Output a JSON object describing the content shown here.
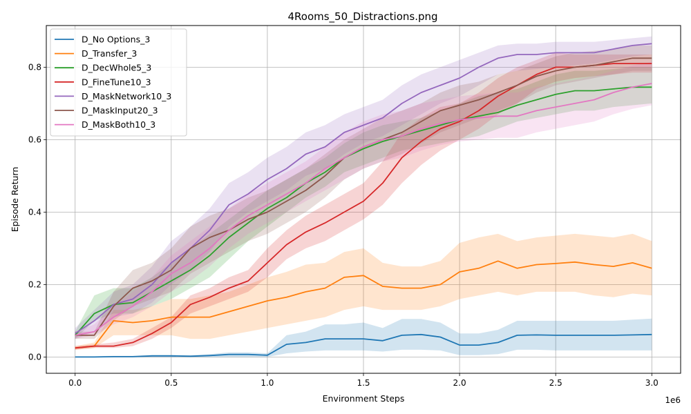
{
  "chart_data": {
    "type": "line",
    "title": "4Rooms_50_Distractions.png",
    "xlabel": "Environment Steps",
    "ylabel": "Episode Return",
    "x_offset_label": "1e6",
    "xlim": [
      -0.15,
      3.15
    ],
    "ylim": [
      -0.045,
      0.915
    ],
    "xticks": [
      0.0,
      0.5,
      1.0,
      1.5,
      2.0,
      2.5,
      3.0
    ],
    "xtick_labels": [
      "0.0",
      "0.5",
      "1.0",
      "1.5",
      "2.0",
      "2.5",
      "3.0"
    ],
    "yticks": [
      0.0,
      0.2,
      0.4,
      0.6,
      0.8
    ],
    "ytick_labels": [
      "0.0",
      "0.2",
      "0.4",
      "0.6",
      "0.8"
    ],
    "grid": true,
    "legend_position": "top-left",
    "x": [
      0,
      0.1,
      0.2,
      0.3,
      0.4,
      0.5,
      0.6,
      0.7,
      0.8,
      0.9,
      1.0,
      1.1,
      1.2,
      1.3,
      1.4,
      1.5,
      1.6,
      1.7,
      1.8,
      1.9,
      2.0,
      2.1,
      2.2,
      2.3,
      2.4,
      2.5,
      2.6,
      2.7,
      2.8,
      2.9,
      3.0
    ],
    "series": [
      {
        "name": "D_No Options_3",
        "color": "#1f77b4",
        "values": [
          0.0,
          0.0,
          0.001,
          0.001,
          0.003,
          0.003,
          0.002,
          0.004,
          0.007,
          0.007,
          0.005,
          0.035,
          0.04,
          0.05,
          0.05,
          0.05,
          0.045,
          0.06,
          0.062,
          0.055,
          0.033,
          0.033,
          0.04,
          0.06,
          0.061,
          0.06,
          0.06,
          0.06,
          0.06,
          0.061,
          0.062
        ],
        "lower": [
          0.0,
          0.0,
          0.0,
          0.0,
          0.0,
          0.0,
          0.0,
          0.0,
          0.0,
          0.0,
          0.0,
          0.01,
          0.015,
          0.018,
          0.018,
          0.018,
          0.015,
          0.02,
          0.02,
          0.018,
          0.005,
          0.005,
          0.008,
          0.02,
          0.02,
          0.018,
          0.018,
          0.018,
          0.018,
          0.018,
          0.018
        ],
        "upper": [
          0.002,
          0.002,
          0.003,
          0.003,
          0.006,
          0.006,
          0.005,
          0.008,
          0.013,
          0.013,
          0.01,
          0.06,
          0.07,
          0.09,
          0.09,
          0.095,
          0.08,
          0.105,
          0.105,
          0.095,
          0.065,
          0.065,
          0.075,
          0.1,
          0.1,
          0.1,
          0.1,
          0.1,
          0.1,
          0.103,
          0.106
        ]
      },
      {
        "name": "D_Transfer_3",
        "color": "#ff7f0e",
        "values": [
          0.025,
          0.03,
          0.1,
          0.095,
          0.1,
          0.11,
          0.11,
          0.11,
          0.125,
          0.14,
          0.155,
          0.165,
          0.18,
          0.19,
          0.22,
          0.225,
          0.195,
          0.19,
          0.19,
          0.2,
          0.235,
          0.245,
          0.265,
          0.245,
          0.255,
          0.258,
          0.262,
          0.255,
          0.25,
          0.26,
          0.245
        ],
        "lower": [
          0.02,
          0.025,
          0.06,
          0.06,
          0.06,
          0.06,
          0.05,
          0.05,
          0.06,
          0.07,
          0.08,
          0.09,
          0.1,
          0.11,
          0.13,
          0.14,
          0.13,
          0.13,
          0.13,
          0.14,
          0.16,
          0.17,
          0.18,
          0.17,
          0.18,
          0.18,
          0.18,
          0.17,
          0.165,
          0.175,
          0.17
        ],
        "upper": [
          0.03,
          0.04,
          0.13,
          0.13,
          0.14,
          0.16,
          0.16,
          0.17,
          0.18,
          0.2,
          0.22,
          0.235,
          0.255,
          0.26,
          0.29,
          0.3,
          0.26,
          0.25,
          0.25,
          0.265,
          0.315,
          0.33,
          0.34,
          0.32,
          0.33,
          0.335,
          0.34,
          0.335,
          0.33,
          0.34,
          0.32
        ]
      },
      {
        "name": "D_DecWhole5_3",
        "color": "#2ca02c",
        "values": [
          0.06,
          0.12,
          0.145,
          0.15,
          0.18,
          0.21,
          0.24,
          0.28,
          0.33,
          0.37,
          0.41,
          0.44,
          0.48,
          0.51,
          0.55,
          0.575,
          0.595,
          0.61,
          0.625,
          0.64,
          0.655,
          0.665,
          0.675,
          0.695,
          0.71,
          0.725,
          0.735,
          0.735,
          0.74,
          0.745,
          0.745
        ],
        "lower": [
          0.05,
          0.1,
          0.12,
          0.12,
          0.14,
          0.16,
          0.19,
          0.22,
          0.27,
          0.32,
          0.36,
          0.4,
          0.44,
          0.47,
          0.51,
          0.53,
          0.55,
          0.57,
          0.58,
          0.59,
          0.6,
          0.61,
          0.63,
          0.65,
          0.66,
          0.67,
          0.68,
          0.68,
          0.69,
          0.695,
          0.7
        ],
        "upper": [
          0.07,
          0.17,
          0.19,
          0.19,
          0.22,
          0.26,
          0.3,
          0.34,
          0.38,
          0.42,
          0.46,
          0.49,
          0.52,
          0.55,
          0.59,
          0.62,
          0.64,
          0.65,
          0.66,
          0.68,
          0.7,
          0.72,
          0.73,
          0.74,
          0.76,
          0.78,
          0.79,
          0.79,
          0.795,
          0.8,
          0.8
        ]
      },
      {
        "name": "D_FineTune10_3",
        "color": "#d62728",
        "values": [
          0.025,
          0.03,
          0.03,
          0.04,
          0.065,
          0.095,
          0.145,
          0.165,
          0.19,
          0.21,
          0.26,
          0.31,
          0.345,
          0.37,
          0.4,
          0.43,
          0.48,
          0.55,
          0.595,
          0.63,
          0.65,
          0.68,
          0.72,
          0.75,
          0.78,
          0.8,
          0.8,
          0.805,
          0.81,
          0.81,
          0.81
        ],
        "lower": [
          0.02,
          0.025,
          0.025,
          0.03,
          0.05,
          0.08,
          0.12,
          0.14,
          0.16,
          0.18,
          0.22,
          0.27,
          0.3,
          0.32,
          0.35,
          0.38,
          0.42,
          0.48,
          0.53,
          0.57,
          0.6,
          0.63,
          0.67,
          0.7,
          0.74,
          0.76,
          0.77,
          0.775,
          0.78,
          0.785,
          0.785
        ],
        "upper": [
          0.03,
          0.035,
          0.04,
          0.05,
          0.08,
          0.11,
          0.17,
          0.19,
          0.22,
          0.24,
          0.3,
          0.35,
          0.39,
          0.42,
          0.45,
          0.48,
          0.54,
          0.62,
          0.66,
          0.69,
          0.7,
          0.73,
          0.77,
          0.8,
          0.82,
          0.84,
          0.835,
          0.835,
          0.835,
          0.835,
          0.835
        ]
      },
      {
        "name": "D_MaskNetwork10_3",
        "color": "#9467bd",
        "values": [
          0.065,
          0.1,
          0.145,
          0.16,
          0.2,
          0.26,
          0.3,
          0.35,
          0.42,
          0.45,
          0.49,
          0.52,
          0.56,
          0.58,
          0.62,
          0.64,
          0.66,
          0.7,
          0.73,
          0.75,
          0.77,
          0.8,
          0.825,
          0.835,
          0.835,
          0.84,
          0.84,
          0.84,
          0.85,
          0.86,
          0.865
        ],
        "lower": [
          0.05,
          0.07,
          0.11,
          0.12,
          0.15,
          0.2,
          0.24,
          0.29,
          0.36,
          0.4,
          0.43,
          0.46,
          0.5,
          0.52,
          0.56,
          0.59,
          0.61,
          0.64,
          0.67,
          0.7,
          0.72,
          0.75,
          0.78,
          0.79,
          0.795,
          0.8,
          0.805,
          0.81,
          0.82,
          0.83,
          0.835
        ],
        "upper": [
          0.08,
          0.13,
          0.18,
          0.2,
          0.25,
          0.32,
          0.36,
          0.41,
          0.48,
          0.51,
          0.55,
          0.58,
          0.62,
          0.64,
          0.67,
          0.69,
          0.71,
          0.75,
          0.78,
          0.8,
          0.82,
          0.84,
          0.86,
          0.865,
          0.865,
          0.87,
          0.87,
          0.87,
          0.875,
          0.88,
          0.885
        ]
      },
      {
        "name": "D_MaskInput20_3",
        "color": "#8c564b",
        "values": [
          0.06,
          0.06,
          0.14,
          0.19,
          0.21,
          0.24,
          0.3,
          0.33,
          0.35,
          0.38,
          0.4,
          0.43,
          0.46,
          0.5,
          0.55,
          0.58,
          0.6,
          0.62,
          0.65,
          0.68,
          0.695,
          0.71,
          0.73,
          0.75,
          0.775,
          0.79,
          0.8,
          0.805,
          0.815,
          0.825,
          0.825
        ],
        "lower": [
          0.05,
          0.05,
          0.1,
          0.14,
          0.16,
          0.18,
          0.23,
          0.26,
          0.29,
          0.32,
          0.34,
          0.37,
          0.4,
          0.44,
          0.49,
          0.52,
          0.54,
          0.56,
          0.59,
          0.62,
          0.64,
          0.66,
          0.68,
          0.7,
          0.73,
          0.75,
          0.76,
          0.77,
          0.78,
          0.79,
          0.79
        ],
        "upper": [
          0.07,
          0.07,
          0.18,
          0.24,
          0.26,
          0.3,
          0.36,
          0.39,
          0.41,
          0.44,
          0.46,
          0.49,
          0.52,
          0.56,
          0.6,
          0.63,
          0.66,
          0.68,
          0.7,
          0.73,
          0.75,
          0.76,
          0.78,
          0.79,
          0.81,
          0.83,
          0.84,
          0.845,
          0.85,
          0.86,
          0.86
        ]
      },
      {
        "name": "D_MaskBoth10_3",
        "color": "#e377c2",
        "values": [
          0.06,
          0.07,
          0.11,
          0.14,
          0.18,
          0.23,
          0.26,
          0.3,
          0.35,
          0.39,
          0.42,
          0.45,
          0.48,
          0.52,
          0.55,
          0.58,
          0.6,
          0.61,
          0.63,
          0.645,
          0.655,
          0.66,
          0.665,
          0.665,
          0.68,
          0.69,
          0.7,
          0.71,
          0.73,
          0.745,
          0.755
        ],
        "lower": [
          0.05,
          0.06,
          0.09,
          0.11,
          0.14,
          0.18,
          0.21,
          0.25,
          0.3,
          0.34,
          0.37,
          0.4,
          0.43,
          0.46,
          0.49,
          0.52,
          0.54,
          0.55,
          0.57,
          0.585,
          0.595,
          0.6,
          0.605,
          0.605,
          0.62,
          0.63,
          0.64,
          0.65,
          0.67,
          0.685,
          0.695
        ],
        "upper": [
          0.07,
          0.09,
          0.14,
          0.18,
          0.22,
          0.28,
          0.32,
          0.36,
          0.41,
          0.45,
          0.48,
          0.51,
          0.54,
          0.58,
          0.62,
          0.65,
          0.67,
          0.68,
          0.7,
          0.71,
          0.72,
          0.725,
          0.73,
          0.73,
          0.745,
          0.755,
          0.765,
          0.775,
          0.79,
          0.805,
          0.815
        ]
      }
    ]
  }
}
